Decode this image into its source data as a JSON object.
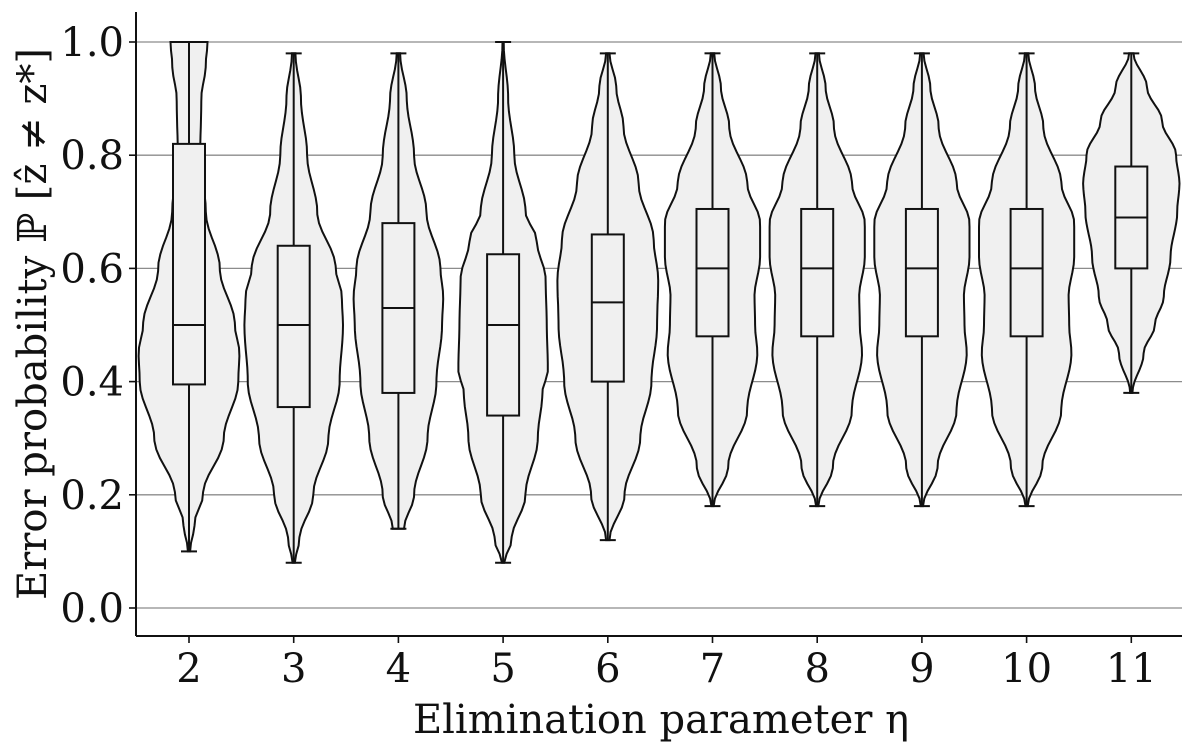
{
  "chart_data": {
    "type": "violin",
    "xlabel": "Elimination parameter η",
    "ylabel": "Error probability ℙ [ẑ ≠ z*]",
    "ylim": [
      -0.05,
      1.05
    ],
    "yticks": [
      "0.0",
      "0.2",
      "0.4",
      "0.6",
      "0.8",
      "1.0"
    ],
    "grid": "horizontal",
    "box_style": "boxplot inside violin",
    "colors": {
      "fill": "#f0f0f0",
      "stroke": "#111111",
      "grid": "#8c8c8c"
    },
    "categories": [
      "2",
      "3",
      "4",
      "5",
      "6",
      "7",
      "8",
      "9",
      "10",
      "11"
    ],
    "series": [
      {
        "x": "2",
        "min": 0.1,
        "q1": 0.395,
        "median": 0.5,
        "q3": 0.82,
        "max": 1.0,
        "density": [
          [
            0.1,
            0.02
          ],
          [
            0.15,
            0.1
          ],
          [
            0.2,
            0.25
          ],
          [
            0.3,
            0.62
          ],
          [
            0.4,
            0.88
          ],
          [
            0.45,
            0.9
          ],
          [
            0.5,
            0.82
          ],
          [
            0.6,
            0.55
          ],
          [
            0.7,
            0.3
          ],
          [
            0.8,
            0.2
          ],
          [
            0.9,
            0.22
          ],
          [
            0.96,
            0.3
          ],
          [
            1.0,
            0.33
          ]
        ]
      },
      {
        "x": "3",
        "min": 0.08,
        "q1": 0.355,
        "median": 0.5,
        "q3": 0.64,
        "max": 0.98,
        "density": [
          [
            0.08,
            0.02
          ],
          [
            0.12,
            0.1
          ],
          [
            0.2,
            0.35
          ],
          [
            0.3,
            0.62
          ],
          [
            0.4,
            0.82
          ],
          [
            0.5,
            0.88
          ],
          [
            0.55,
            0.86
          ],
          [
            0.6,
            0.75
          ],
          [
            0.7,
            0.42
          ],
          [
            0.8,
            0.24
          ],
          [
            0.9,
            0.13
          ],
          [
            0.98,
            0.03
          ]
        ]
      },
      {
        "x": "4",
        "min": 0.14,
        "q1": 0.38,
        "median": 0.53,
        "q3": 0.68,
        "max": 0.98,
        "density": [
          [
            0.14,
            0.1
          ],
          [
            0.2,
            0.28
          ],
          [
            0.3,
            0.52
          ],
          [
            0.4,
            0.68
          ],
          [
            0.5,
            0.78
          ],
          [
            0.55,
            0.8
          ],
          [
            0.6,
            0.75
          ],
          [
            0.7,
            0.5
          ],
          [
            0.8,
            0.28
          ],
          [
            0.9,
            0.15
          ],
          [
            0.98,
            0.03
          ]
        ]
      },
      {
        "x": "5",
        "min": 0.08,
        "q1": 0.34,
        "median": 0.5,
        "q3": 0.625,
        "max": 1.0,
        "density": [
          [
            0.08,
            0.02
          ],
          [
            0.12,
            0.15
          ],
          [
            0.2,
            0.4
          ],
          [
            0.3,
            0.62
          ],
          [
            0.38,
            0.7
          ],
          [
            0.42,
            0.8
          ],
          [
            0.5,
            0.78
          ],
          [
            0.58,
            0.76
          ],
          [
            0.65,
            0.6
          ],
          [
            0.7,
            0.4
          ],
          [
            0.8,
            0.2
          ],
          [
            0.9,
            0.09
          ],
          [
            1.0,
            0.01
          ]
        ]
      },
      {
        "x": "6",
        "min": 0.12,
        "q1": 0.4,
        "median": 0.54,
        "q3": 0.66,
        "max": 0.98,
        "density": [
          [
            0.12,
            0.03
          ],
          [
            0.2,
            0.3
          ],
          [
            0.3,
            0.58
          ],
          [
            0.4,
            0.78
          ],
          [
            0.5,
            0.88
          ],
          [
            0.58,
            0.9
          ],
          [
            0.65,
            0.82
          ],
          [
            0.75,
            0.55
          ],
          [
            0.85,
            0.28
          ],
          [
            0.92,
            0.15
          ],
          [
            0.98,
            0.03
          ]
        ]
      },
      {
        "x": "7",
        "min": 0.18,
        "q1": 0.48,
        "median": 0.6,
        "q3": 0.705,
        "max": 0.98,
        "density": [
          [
            0.18,
            0.02
          ],
          [
            0.25,
            0.28
          ],
          [
            0.35,
            0.62
          ],
          [
            0.45,
            0.8
          ],
          [
            0.5,
            0.76
          ],
          [
            0.55,
            0.75
          ],
          [
            0.62,
            0.85
          ],
          [
            0.68,
            0.85
          ],
          [
            0.75,
            0.62
          ],
          [
            0.85,
            0.3
          ],
          [
            0.92,
            0.15
          ],
          [
            0.98,
            0.03
          ]
        ]
      },
      {
        "x": "8",
        "min": 0.18,
        "q1": 0.48,
        "median": 0.6,
        "q3": 0.705,
        "max": 0.98,
        "density": [
          [
            0.18,
            0.02
          ],
          [
            0.25,
            0.28
          ],
          [
            0.35,
            0.62
          ],
          [
            0.45,
            0.8
          ],
          [
            0.5,
            0.76
          ],
          [
            0.55,
            0.75
          ],
          [
            0.62,
            0.85
          ],
          [
            0.68,
            0.85
          ],
          [
            0.75,
            0.62
          ],
          [
            0.85,
            0.3
          ],
          [
            0.92,
            0.15
          ],
          [
            0.98,
            0.03
          ]
        ]
      },
      {
        "x": "9",
        "min": 0.18,
        "q1": 0.48,
        "median": 0.6,
        "q3": 0.705,
        "max": 0.98,
        "density": [
          [
            0.18,
            0.02
          ],
          [
            0.25,
            0.28
          ],
          [
            0.35,
            0.62
          ],
          [
            0.45,
            0.8
          ],
          [
            0.5,
            0.76
          ],
          [
            0.55,
            0.75
          ],
          [
            0.62,
            0.85
          ],
          [
            0.68,
            0.85
          ],
          [
            0.75,
            0.62
          ],
          [
            0.85,
            0.3
          ],
          [
            0.92,
            0.15
          ],
          [
            0.98,
            0.03
          ]
        ]
      },
      {
        "x": "10",
        "min": 0.18,
        "q1": 0.48,
        "median": 0.6,
        "q3": 0.705,
        "max": 0.98,
        "density": [
          [
            0.18,
            0.02
          ],
          [
            0.25,
            0.28
          ],
          [
            0.35,
            0.62
          ],
          [
            0.45,
            0.8
          ],
          [
            0.5,
            0.76
          ],
          [
            0.55,
            0.75
          ],
          [
            0.62,
            0.85
          ],
          [
            0.68,
            0.85
          ],
          [
            0.75,
            0.62
          ],
          [
            0.85,
            0.3
          ],
          [
            0.92,
            0.15
          ],
          [
            0.98,
            0.03
          ]
        ]
      },
      {
        "x": "11",
        "min": 0.38,
        "q1": 0.6,
        "median": 0.69,
        "q3": 0.78,
        "max": 0.98,
        "density": [
          [
            0.38,
            0.02
          ],
          [
            0.45,
            0.22
          ],
          [
            0.5,
            0.42
          ],
          [
            0.55,
            0.58
          ],
          [
            0.62,
            0.7
          ],
          [
            0.7,
            0.82
          ],
          [
            0.75,
            0.86
          ],
          [
            0.8,
            0.8
          ],
          [
            0.86,
            0.55
          ],
          [
            0.92,
            0.28
          ],
          [
            0.98,
            0.04
          ]
        ]
      }
    ]
  }
}
